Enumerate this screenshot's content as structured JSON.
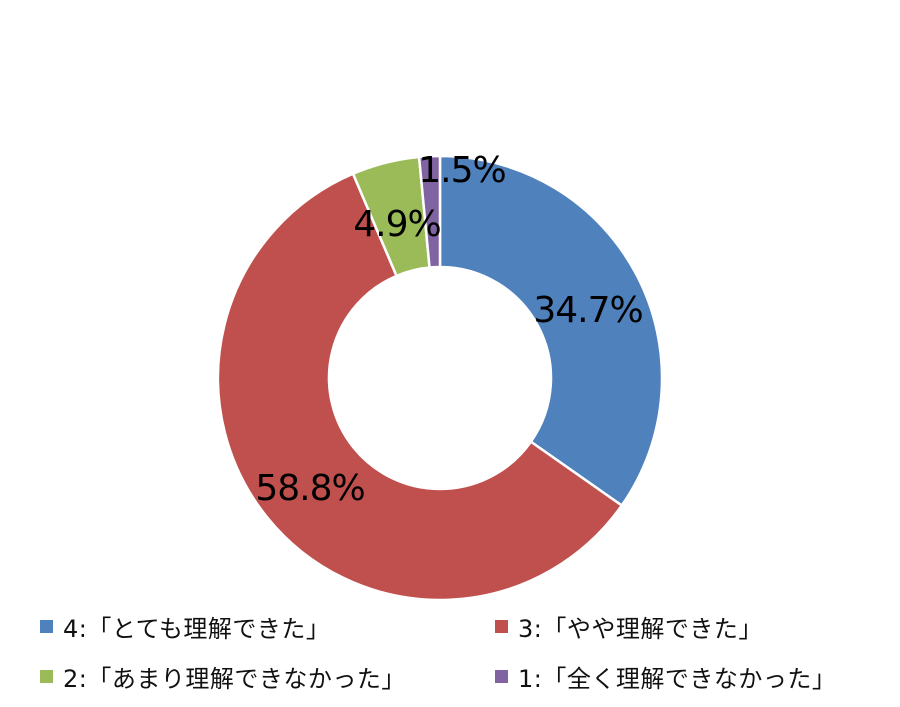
{
  "chart_data": {
    "type": "pie",
    "style": "donut",
    "categories": [
      "4:「とても理解できた」",
      "3:「やや理解できた」",
      "2:「あまり理解できなかった」",
      "1:「全く理解できなかった」"
    ],
    "values": [
      34.7,
      58.8,
      4.9,
      1.5
    ],
    "data_labels": [
      "34.7%",
      "58.8%",
      "4.9%",
      "1.5%"
    ],
    "colors": [
      "#4f81bd",
      "#c0504d",
      "#9bbb59",
      "#8064a2"
    ],
    "start_angle_deg": 0,
    "direction": "clockwise",
    "legend_position": "bottom",
    "title": ""
  }
}
